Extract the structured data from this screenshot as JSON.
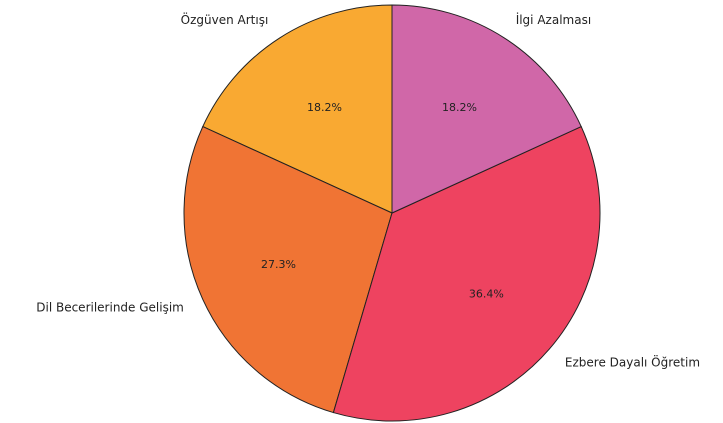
{
  "chart_data": {
    "type": "pie",
    "categories": [
      "Özgüven Artışı",
      "Dil Becerilerinde Gelişim",
      "Ezbere Dayalı Öğretim",
      "İlgi Azalması"
    ],
    "values": [
      18.2,
      27.3,
      36.4,
      18.2
    ],
    "value_labels": [
      "18.2%",
      "27.3%",
      "36.4%",
      "18.2%"
    ],
    "colors": [
      "#f9a932",
      "#f07434",
      "#ee4360",
      "#d067a8"
    ]
  }
}
